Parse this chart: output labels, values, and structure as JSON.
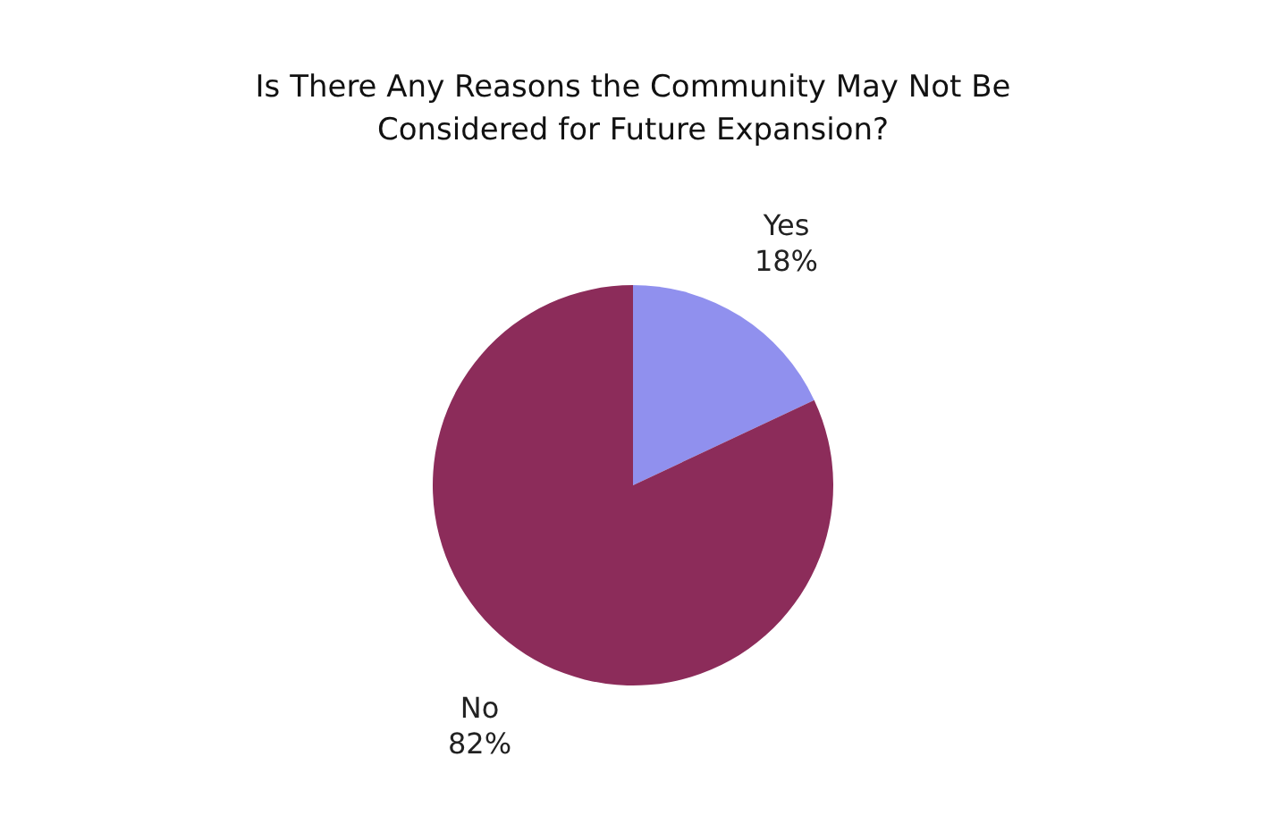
{
  "chart_data": {
    "type": "pie",
    "title": "Is There Any Reasons the Community May Not Be Considered for Future Expansion?",
    "categories": [
      "Yes",
      "No"
    ],
    "values": [
      18,
      82
    ],
    "colors": [
      "#9090ee",
      "#8c2c5a"
    ],
    "value_labels": [
      "18%",
      "82%"
    ]
  }
}
